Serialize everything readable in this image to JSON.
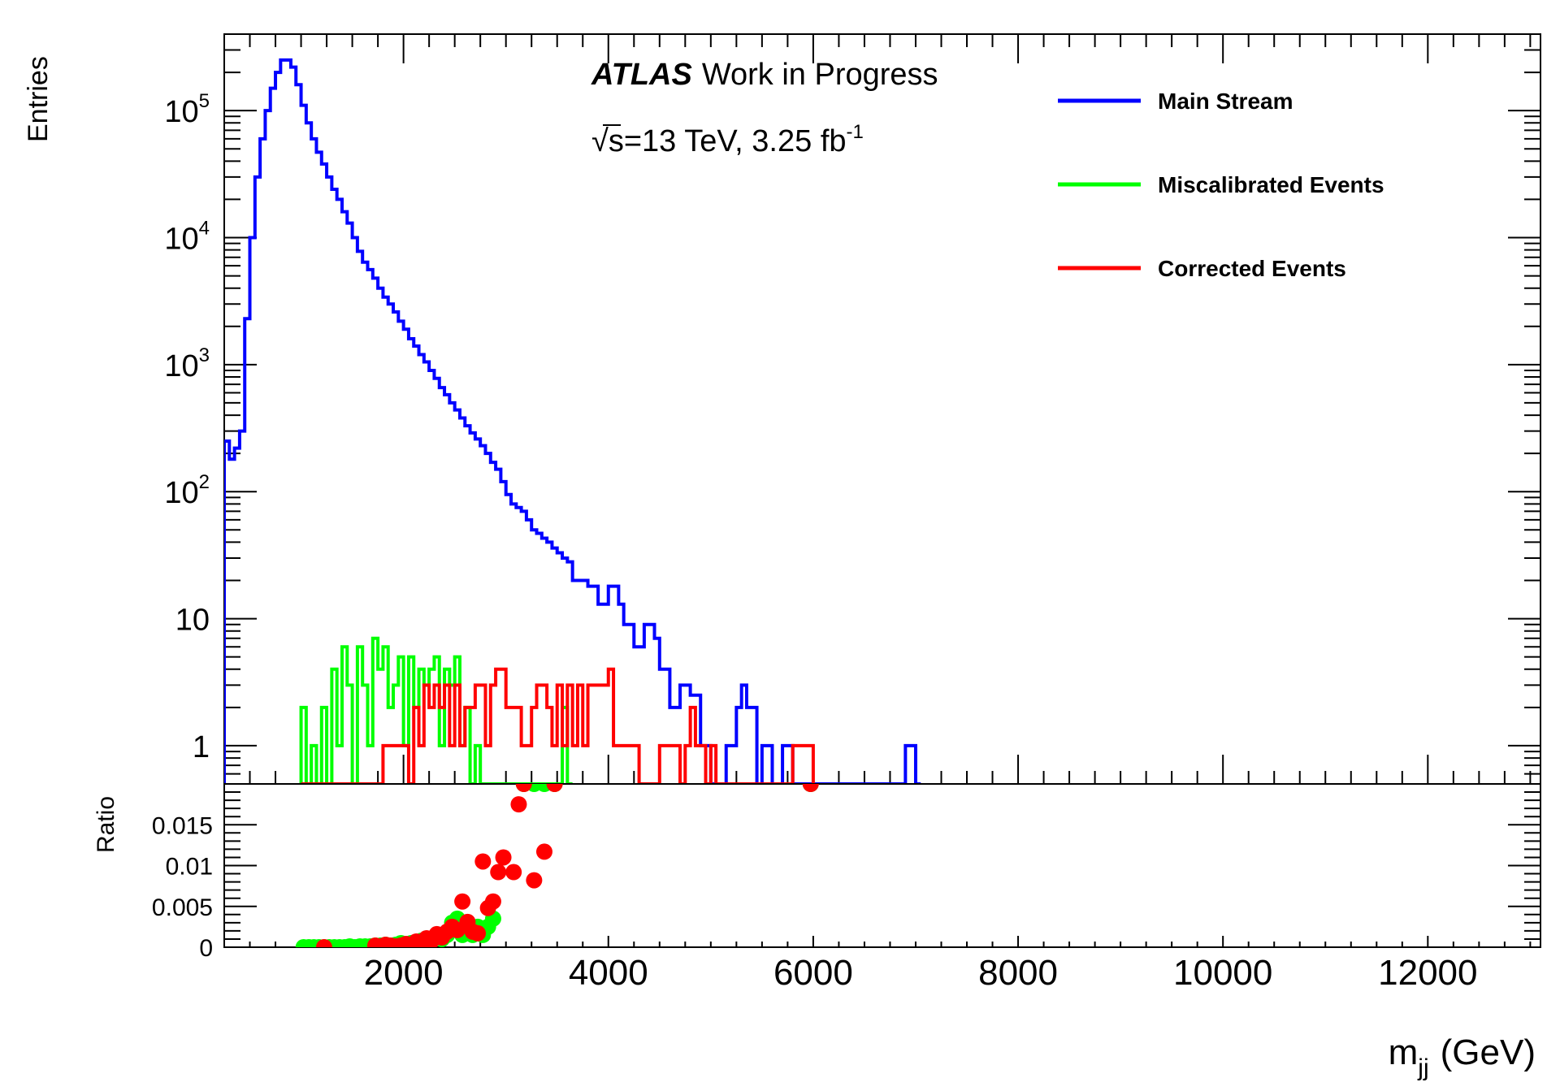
{
  "chart_data": [
    {
      "type": "line",
      "ylabel": "Entries",
      "yscale": "log",
      "xlim": [
        250,
        13100
      ],
      "ylim": [
        0.5,
        400000
      ],
      "ytick_labels": [
        {
          "value": 1,
          "label": "1"
        },
        {
          "value": 10,
          "label": "10"
        },
        {
          "value": 100,
          "base": "10",
          "exp": "2"
        },
        {
          "value": 1000,
          "base": "10",
          "exp": "3"
        },
        {
          "value": 10000,
          "base": "10",
          "exp": "4"
        },
        {
          "value": 100000,
          "base": "10",
          "exp": "5"
        }
      ],
      "annotations": {
        "atlas": "ATLAS",
        "status": "Work in Progress",
        "sqrt": "√",
        "energy": "s=13 TeV, 3.25 fb",
        "lumi_exp": "-1"
      },
      "legend": {
        "position": "top-right"
      },
      "series": [
        {
          "name": "Main Stream",
          "color": "#0000ff",
          "bin_width": 50,
          "x": [
            250,
            300,
            350,
            400,
            450,
            500,
            550,
            600,
            650,
            700,
            750,
            800,
            850,
            900,
            950,
            1000,
            1050,
            1100,
            1150,
            1200,
            1250,
            1300,
            1350,
            1400,
            1450,
            1500,
            1550,
            1600,
            1650,
            1700,
            1750,
            1800,
            1850,
            1900,
            1950,
            2000,
            2050,
            2100,
            2150,
            2200,
            2250,
            2300,
            2350,
            2400,
            2450,
            2500,
            2550,
            2600,
            2650,
            2700,
            2750,
            2800,
            2850,
            2900,
            2950,
            3000,
            3050,
            3100,
            3150,
            3200,
            3250,
            3300,
            3350,
            3400,
            3450,
            3500,
            3550,
            3600,
            3650,
            3700,
            3750,
            3800,
            3850,
            3900,
            3950,
            4000,
            4050,
            4100,
            4150,
            4200,
            4250,
            4300,
            4350,
            4400,
            4450,
            4500,
            4550,
            4600,
            4650,
            4700,
            4750,
            4800,
            4850,
            4900,
            4950,
            5000,
            5050,
            5100,
            5150,
            5200,
            5250,
            5300,
            5350,
            5400,
            5450,
            5500,
            5550,
            5600,
            5650,
            5700,
            5750,
            5800,
            5850,
            5900,
            5950,
            6000,
            6900,
            6950,
            7000
          ],
          "values": [
            250,
            180,
            220,
            300,
            2300,
            10000,
            30000,
            60000,
            100000,
            150000,
            200000,
            250000,
            250000,
            220000,
            160000,
            110000,
            80000,
            60000,
            47000,
            38000,
            30000,
            24000,
            20000,
            16000,
            13000,
            10000,
            7800,
            6400,
            5600,
            4800,
            4000,
            3400,
            3000,
            2600,
            2200,
            1900,
            1600,
            1400,
            1200,
            1050,
            900,
            780,
            660,
            580,
            500,
            440,
            380,
            330,
            290,
            260,
            230,
            200,
            170,
            150,
            120,
            95,
            80,
            75,
            70,
            60,
            50,
            47,
            43,
            40,
            36,
            33,
            30,
            28,
            20,
            20,
            20,
            18,
            18,
            13,
            13,
            18,
            18,
            13,
            9,
            9,
            6,
            6,
            9,
            9,
            7,
            4,
            4,
            2,
            2,
            3,
            3,
            2.5,
            2.5,
            1,
            1,
            0.5,
            0.5,
            0.5,
            1,
            1,
            2,
            3,
            2,
            2,
            0.5,
            1,
            1,
            0.5,
            0.5,
            1,
            1,
            0.5,
            0.5,
            0.5,
            0.5,
            0.5,
            1,
            1,
            0.5
          ]
        },
        {
          "name": "Miscalibrated Events",
          "color": "#00ff00",
          "bin_width": 50,
          "x": [
            1000,
            1050,
            1100,
            1150,
            1200,
            1250,
            1300,
            1350,
            1400,
            1450,
            1500,
            1550,
            1600,
            1650,
            1700,
            1750,
            1800,
            1850,
            1900,
            1950,
            2000,
            2050,
            2100,
            2150,
            2200,
            2250,
            2300,
            2350,
            2400,
            2450,
            2500,
            2550,
            2600,
            2650,
            2700,
            2750,
            2800,
            2850,
            2900,
            2950,
            3000,
            3050,
            3100,
            3150,
            3200,
            3250,
            3300,
            3350,
            3400,
            3450,
            3500,
            3550,
            3600
          ],
          "values": [
            2,
            0.5,
            1,
            0.5,
            2,
            0.5,
            4,
            1,
            6,
            3,
            0.5,
            6,
            3,
            1,
            7,
            4,
            6,
            2,
            3,
            5,
            1,
            5,
            2,
            4,
            3,
            4,
            5,
            1,
            4,
            3,
            5,
            1,
            2,
            0.5,
            1,
            0.5,
            0.5,
            0.5,
            0.5,
            0.5,
            0.5,
            0.5,
            0.5,
            0.5,
            0.5,
            0.5,
            0.5,
            0.5,
            0.5,
            0.5,
            0.5,
            2,
            0.5
          ]
        },
        {
          "name": "Corrected Events",
          "color": "#ff0000",
          "bin_width": 50,
          "x": [
            1000,
            1050,
            1100,
            1150,
            1200,
            1250,
            1300,
            1350,
            1400,
            1450,
            1500,
            1550,
            1600,
            1650,
            1700,
            1750,
            1800,
            1850,
            1900,
            1950,
            2000,
            2050,
            2100,
            2150,
            2200,
            2250,
            2300,
            2350,
            2400,
            2450,
            2500,
            2550,
            2600,
            2650,
            2700,
            2750,
            2800,
            2850,
            2900,
            2950,
            3000,
            3050,
            3100,
            3150,
            3200,
            3250,
            3300,
            3350,
            3400,
            3450,
            3500,
            3550,
            3600,
            3650,
            3700,
            3750,
            3800,
            3850,
            3900,
            3950,
            4000,
            4050,
            4100,
            4150,
            4200,
            4250,
            4300,
            4350,
            4400,
            4450,
            4500,
            4550,
            4600,
            4650,
            4700,
            4750,
            4800,
            4850,
            4900,
            4950,
            5000,
            5050,
            5100,
            5150,
            5200,
            5250,
            5300,
            5350,
            5400,
            5450,
            5500,
            5550,
            5600,
            5650,
            5700,
            5750,
            5800,
            5850,
            5900,
            5950
          ],
          "values": [
            0.5,
            0.5,
            0.5,
            0.5,
            0.5,
            0.5,
            0.5,
            0.5,
            0.5,
            0.5,
            0.5,
            0.5,
            0.5,
            0.5,
            0.5,
            0.5,
            1,
            1,
            1,
            1,
            1,
            0.5,
            2,
            1,
            3,
            2,
            3,
            2,
            3,
            1,
            3,
            1,
            2,
            2,
            3,
            3,
            1,
            3,
            4,
            4,
            2,
            2,
            2,
            1,
            1,
            2,
            3,
            3,
            2,
            1,
            3,
            1,
            3,
            1,
            3,
            1,
            3,
            3,
            3,
            3,
            4,
            1,
            1,
            1,
            1,
            1,
            0.5,
            0.5,
            0.5,
            0.5,
            1,
            1,
            1,
            1,
            0.5,
            1,
            2,
            1,
            1,
            0.5,
            1,
            0.5,
            0.5,
            0.5,
            0.5,
            0.5,
            0.5,
            0.5,
            0.5,
            0.5,
            0.5,
            0.5,
            0.5,
            0.5,
            0.5,
            0.5,
            1,
            1,
            1,
            1
          ]
        }
      ]
    },
    {
      "type": "scatter",
      "ylabel": "Ratio",
      "xlabel_main": "m",
      "xlabel_sub": "jj",
      "xlabel_unit": "(GeV)",
      "xlim": [
        250,
        13100
      ],
      "ylim": [
        0,
        0.02
      ],
      "xticks": [
        2000,
        4000,
        6000,
        8000,
        10000,
        12000
      ],
      "xtick_labels": [
        "2000",
        "4000",
        "6000",
        "8000",
        "10000",
        "12000"
      ],
      "yticks": [
        0,
        0.005,
        0.01,
        0.015
      ],
      "ytick_labels": [
        "0",
        "0.005",
        "0.01",
        "0.015"
      ],
      "series": [
        {
          "color": "#00ff00",
          "x": [
            1000,
            1050,
            1100,
            1150,
            1200,
            1250,
            1300,
            1350,
            1400,
            1450,
            1500,
            1550,
            1600,
            1650,
            1700,
            1750,
            1800,
            1850,
            1900,
            1950,
            2000,
            2050,
            2100,
            2150,
            2200,
            2250,
            2300,
            2350,
            2400,
            2450,
            2500,
            2550,
            2600,
            2650,
            2700,
            2750,
            2800,
            2850,
            3150,
            3250,
            3350,
            3450,
            5950
          ],
          "values": [
            0,
            0,
            0,
            0,
            0,
            0,
            0,
            0,
            0,
            0.0001,
            0,
            0.0001,
            0.0001,
            0.0001,
            0.0002,
            0.0002,
            0.0003,
            0.0002,
            0.0003,
            0.0005,
            0.0003,
            0.0005,
            0.0005,
            0.0008,
            0.0008,
            0.001,
            0.0015,
            0.001,
            0.0015,
            0.003,
            0.0035,
            0.0015,
            0.0025,
            0.0015,
            0.0025,
            0.0015,
            0.0025,
            0.0035,
            0.02,
            0.02,
            0.02,
            0.02,
            0.02
          ]
        },
        {
          "color": "#ff0000",
          "x": [
            1200,
            1700,
            1750,
            1800,
            1850,
            1900,
            1950,
            2000,
            2050,
            2100,
            2150,
            2200,
            2250,
            2300,
            2350,
            2400,
            2450,
            2500,
            2550,
            2600,
            2650,
            2700,
            2750,
            2800,
            2850,
            2900,
            2950,
            3050,
            3100,
            3150,
            3250,
            3350,
            3450,
            5950
          ],
          "values": [
            0,
            0.0002,
            0.0001,
            0.0003,
            0.0002,
            0.0001,
            0.0002,
            0.0004,
            0.0003,
            0.0007,
            0.0005,
            0.0011,
            0.0008,
            0.0016,
            0.0012,
            0.0019,
            0.0025,
            0.0021,
            0.0056,
            0.0031,
            0.0019,
            0.0017,
            0.0105,
            0.0048,
            0.0056,
            0.0092,
            0.011,
            0.0092,
            0.0175,
            0.02,
            0.0082,
            0.0117,
            0.02,
            0.02
          ]
        }
      ]
    }
  ]
}
